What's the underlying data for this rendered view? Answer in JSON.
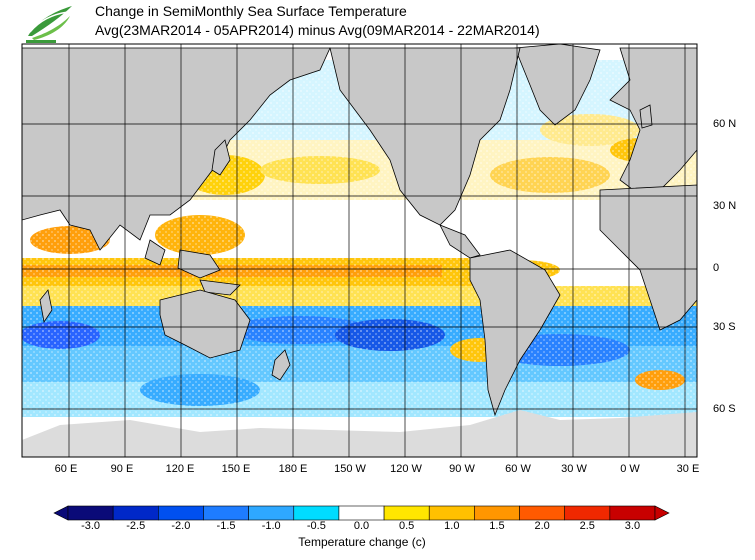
{
  "header": {
    "title_line1": "Change in SemiMonthly Sea Surface Temperature",
    "title_line2": "Avg(23MAR2014 - 05APR2014) minus Avg(09MAR2014 - 22MAR2014)"
  },
  "logo": {
    "icon": "leaf-logo-icon",
    "color": "#3a9a3a"
  },
  "map": {
    "lat_labels": [
      "60 N",
      "30 N",
      "0",
      "30 S",
      "60 S"
    ],
    "lon_labels": [
      "60 E",
      "90 E",
      "120 E",
      "150 E",
      "180 E",
      "150 W",
      "120 W",
      "90 W",
      "60 W",
      "30 W",
      "0 W",
      "30 E"
    ],
    "land_color": "#c8c8c8",
    "ice_color": "#dcdcdc"
  },
  "colorbar": {
    "label": "Temperature change  (c)",
    "ticks": [
      "-3.0",
      "-2.5",
      "-2.0",
      "-1.5",
      "-1.0",
      "-0.5",
      "0.0",
      "0.5",
      "1.0",
      "1.5",
      "2.0",
      "2.5",
      "3.0"
    ],
    "colors": [
      "#0a0a78",
      "#0028c8",
      "#0050f0",
      "#1e7cff",
      "#2ea8ff",
      "#00dcff",
      "#ffffff",
      "#ffe600",
      "#ffc000",
      "#ff9600",
      "#ff5a00",
      "#f02800",
      "#c80000"
    ]
  }
}
